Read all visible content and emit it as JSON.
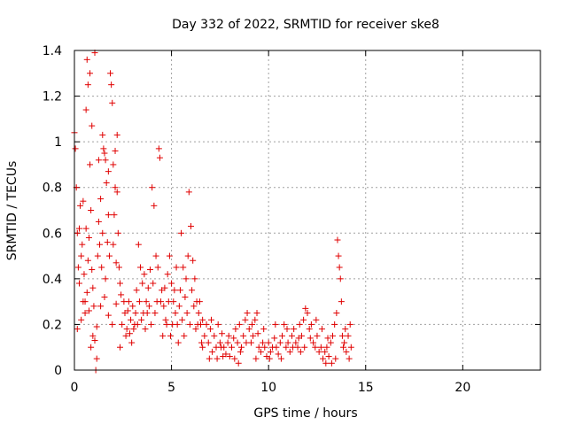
{
  "chart_data": {
    "type": "scatter",
    "title": "Day 332 of 2022, SRMTID for receiver ske8",
    "xlabel": "GPS time / hours",
    "ylabel": "SRMTID / TECUs",
    "xlim": [
      0,
      24
    ],
    "ylim": [
      0,
      1.4
    ],
    "x_ticks": [
      0,
      5,
      10,
      15,
      20
    ],
    "x_tick_labels": [
      "0",
      "5",
      "10",
      "15",
      "20"
    ],
    "y_ticks": [
      0,
      0.2,
      0.4,
      0.6,
      0.8,
      1.0,
      1.2,
      1.4
    ],
    "y_tick_labels": [
      "0",
      "0.2",
      "0.4",
      "0.6",
      "0.8",
      "1",
      "1.2",
      "1.4"
    ],
    "grid": true,
    "marker": "+",
    "color": "#e00000",
    "series": [
      {
        "name": "SRMTID",
        "points": [
          [
            0.0,
            1.04
          ],
          [
            0.05,
            0.97
          ],
          [
            0.1,
            0.8
          ],
          [
            0.15,
            0.6
          ],
          [
            0.2,
            0.45
          ],
          [
            0.25,
            0.38
          ],
          [
            0.3,
            0.72
          ],
          [
            0.35,
            0.5
          ],
          [
            0.4,
            0.55
          ],
          [
            0.45,
            0.3
          ],
          [
            0.5,
            0.42
          ],
          [
            0.55,
            0.25
          ],
          [
            0.6,
            0.62
          ],
          [
            0.65,
            0.34
          ],
          [
            0.7,
            0.48
          ],
          [
            0.75,
            0.58
          ],
          [
            0.8,
            0.9
          ],
          [
            0.85,
            0.7
          ],
          [
            0.9,
            0.44
          ],
          [
            0.95,
            0.36
          ],
          [
            1.0,
            0.28
          ],
          [
            1.05,
            1.39
          ],
          [
            1.1,
            0.0
          ],
          [
            1.15,
            0.05
          ],
          [
            1.2,
            0.5
          ],
          [
            1.25,
            0.65
          ],
          [
            1.3,
            0.55
          ],
          [
            1.35,
            0.75
          ],
          [
            1.4,
            0.45
          ],
          [
            1.45,
            0.6
          ],
          [
            1.5,
            0.97
          ],
          [
            1.55,
            0.95
          ],
          [
            1.6,
            0.4
          ],
          [
            1.65,
            0.82
          ],
          [
            1.7,
            0.56
          ],
          [
            1.75,
            0.68
          ],
          [
            1.8,
            0.5
          ],
          [
            1.85,
            1.3
          ],
          [
            1.9,
            1.25
          ],
          [
            1.95,
            1.17
          ],
          [
            2.0,
            0.55
          ],
          [
            2.05,
            0.68
          ],
          [
            2.1,
            0.8
          ],
          [
            2.15,
            0.47
          ],
          [
            2.2,
            1.03
          ],
          [
            2.25,
            0.6
          ],
          [
            2.3,
            0.45
          ],
          [
            2.35,
            0.38
          ],
          [
            2.4,
            0.33
          ],
          [
            0.15,
            0.18
          ],
          [
            0.35,
            0.22
          ],
          [
            0.55,
            0.3
          ],
          [
            0.75,
            0.26
          ],
          [
            0.95,
            0.15
          ],
          [
            1.15,
            0.19
          ],
          [
            1.35,
            0.28
          ],
          [
            1.55,
            0.32
          ],
          [
            1.75,
            0.24
          ],
          [
            1.95,
            0.2
          ],
          [
            2.15,
            0.29
          ],
          [
            2.35,
            0.1
          ],
          [
            0.85,
            0.1
          ],
          [
            1.05,
            0.13
          ],
          [
            0.25,
            0.62
          ],
          [
            0.45,
            0.74
          ],
          [
            0.65,
            1.36
          ],
          [
            0.8,
            1.3
          ],
          [
            0.7,
            1.25
          ],
          [
            0.6,
            1.14
          ],
          [
            0.9,
            1.07
          ],
          [
            1.45,
            1.03
          ],
          [
            1.6,
            0.92
          ],
          [
            1.75,
            0.87
          ],
          [
            2.0,
            0.9
          ],
          [
            2.1,
            0.96
          ],
          [
            2.2,
            0.78
          ],
          [
            1.25,
            0.92
          ],
          [
            2.6,
            0.25
          ],
          [
            2.7,
            0.18
          ],
          [
            2.8,
            0.3
          ],
          [
            2.9,
            0.22
          ],
          [
            3.0,
            0.28
          ],
          [
            3.1,
            0.2
          ],
          [
            3.2,
            0.35
          ],
          [
            3.3,
            0.55
          ],
          [
            3.4,
            0.45
          ],
          [
            3.5,
            0.38
          ],
          [
            3.6,
            0.42
          ],
          [
            3.7,
            0.3
          ],
          [
            3.8,
            0.36
          ],
          [
            3.9,
            0.44
          ],
          [
            4.0,
            0.8
          ],
          [
            4.1,
            0.72
          ],
          [
            4.2,
            0.5
          ],
          [
            4.3,
            0.45
          ],
          [
            4.35,
            0.97
          ],
          [
            4.4,
            0.93
          ],
          [
            4.5,
            0.35
          ],
          [
            4.6,
            0.28
          ],
          [
            4.7,
            0.22
          ],
          [
            4.8,
            0.42
          ],
          [
            4.9,
            0.5
          ],
          [
            5.0,
            0.38
          ],
          [
            5.1,
            0.3
          ],
          [
            5.2,
            0.25
          ],
          [
            5.3,
            0.2
          ],
          [
            5.4,
            0.28
          ],
          [
            5.5,
            0.6
          ],
          [
            5.6,
            0.45
          ],
          [
            5.7,
            0.32
          ],
          [
            5.8,
            0.25
          ],
          [
            5.9,
            0.78
          ],
          [
            6.0,
            0.63
          ],
          [
            6.1,
            0.48
          ],
          [
            6.2,
            0.4
          ],
          [
            6.3,
            0.3
          ],
          [
            6.4,
            0.25
          ],
          [
            6.5,
            0.2
          ],
          [
            6.6,
            0.22
          ],
          [
            2.65,
            0.15
          ],
          [
            2.95,
            0.12
          ],
          [
            3.25,
            0.2
          ],
          [
            3.55,
            0.25
          ],
          [
            3.85,
            0.28
          ],
          [
            4.15,
            0.25
          ],
          [
            4.45,
            0.3
          ],
          [
            4.75,
            0.2
          ],
          [
            5.05,
            0.2
          ],
          [
            5.35,
            0.12
          ],
          [
            5.65,
            0.15
          ],
          [
            5.95,
            0.2
          ],
          [
            6.25,
            0.18
          ],
          [
            6.55,
            0.12
          ],
          [
            6.7,
            0.15
          ],
          [
            6.8,
            0.2
          ],
          [
            6.9,
            0.12
          ],
          [
            7.0,
            0.18
          ],
          [
            7.1,
            0.08
          ],
          [
            7.2,
            0.15
          ],
          [
            7.3,
            0.1
          ],
          [
            7.4,
            0.2
          ],
          [
            7.5,
            0.12
          ],
          [
            7.6,
            0.16
          ],
          [
            7.7,
            0.1
          ],
          [
            7.8,
            0.07
          ],
          [
            7.9,
            0.12
          ],
          [
            8.0,
            0.06
          ],
          [
            8.1,
            0.1
          ],
          [
            8.2,
            0.14
          ],
          [
            8.3,
            0.18
          ],
          [
            8.4,
            0.12
          ],
          [
            8.5,
            0.2
          ],
          [
            8.6,
            0.1
          ],
          [
            8.7,
            0.15
          ],
          [
            8.8,
            0.22
          ],
          [
            8.9,
            0.25
          ],
          [
            9.0,
            0.18
          ],
          [
            9.1,
            0.12
          ],
          [
            9.2,
            0.15
          ],
          [
            9.3,
            0.22
          ],
          [
            9.4,
            0.25
          ],
          [
            9.5,
            0.1
          ],
          [
            9.6,
            0.08
          ],
          [
            9.7,
            0.12
          ],
          [
            9.8,
            0.1
          ],
          [
            9.9,
            0.06
          ],
          [
            10.0,
            0.12
          ],
          [
            10.1,
            0.08
          ],
          [
            10.2,
            0.1
          ],
          [
            10.3,
            0.14
          ],
          [
            10.4,
            0.1
          ],
          [
            10.5,
            0.07
          ],
          [
            10.6,
            0.12
          ],
          [
            10.7,
            0.15
          ],
          [
            10.8,
            0.2
          ],
          [
            10.9,
            0.1
          ],
          [
            11.0,
            0.12
          ],
          [
            11.1,
            0.08
          ],
          [
            11.2,
            0.15
          ],
          [
            11.3,
            0.18
          ],
          [
            11.4,
            0.12
          ],
          [
            11.5,
            0.1
          ],
          [
            11.6,
            0.2
          ],
          [
            11.7,
            0.15
          ],
          [
            11.8,
            0.22
          ],
          [
            11.9,
            0.27
          ],
          [
            12.0,
            0.25
          ],
          [
            12.1,
            0.18
          ],
          [
            12.2,
            0.2
          ],
          [
            12.3,
            0.12
          ],
          [
            12.4,
            0.1
          ],
          [
            12.5,
            0.15
          ],
          [
            12.6,
            0.08
          ],
          [
            12.7,
            0.1
          ],
          [
            12.8,
            0.05
          ],
          [
            12.9,
            0.08
          ],
          [
            13.0,
            0.1
          ],
          [
            13.1,
            0.06
          ],
          [
            13.2,
            0.12
          ],
          [
            13.3,
            0.15
          ],
          [
            13.4,
            0.2
          ],
          [
            13.5,
            0.25
          ],
          [
            13.55,
            0.57
          ],
          [
            13.6,
            0.5
          ],
          [
            13.65,
            0.45
          ],
          [
            13.7,
            0.4
          ],
          [
            13.75,
            0.3
          ],
          [
            13.8,
            0.15
          ],
          [
            13.85,
            0.1
          ],
          [
            13.9,
            0.12
          ],
          [
            14.0,
            0.08
          ],
          [
            14.1,
            0.15
          ],
          [
            14.2,
            0.2
          ],
          [
            14.25,
            0.1
          ],
          [
            14.15,
            0.05
          ],
          [
            13.95,
            0.18
          ],
          [
            13.45,
            0.05
          ],
          [
            7.05,
            0.22
          ],
          [
            7.35,
            0.05
          ],
          [
            7.65,
            0.06
          ],
          [
            7.95,
            0.15
          ],
          [
            8.25,
            0.05
          ],
          [
            8.55,
            0.08
          ],
          [
            8.85,
            0.12
          ],
          [
            9.15,
            0.2
          ],
          [
            9.45,
            0.16
          ],
          [
            9.75,
            0.18
          ],
          [
            10.05,
            0.05
          ],
          [
            10.35,
            0.2
          ],
          [
            10.65,
            0.05
          ],
          [
            10.95,
            0.18
          ],
          [
            11.25,
            0.1
          ],
          [
            11.55,
            0.14
          ],
          [
            11.85,
            0.1
          ],
          [
            12.15,
            0.14
          ],
          [
            12.45,
            0.22
          ],
          [
            12.75,
            0.18
          ],
          [
            13.05,
            0.14
          ],
          [
            13.25,
            0.03
          ],
          [
            12.95,
            0.03
          ],
          [
            11.65,
            0.08
          ],
          [
            9.35,
            0.05
          ],
          [
            8.45,
            0.03
          ],
          [
            7.55,
            0.1
          ],
          [
            6.95,
            0.05
          ],
          [
            2.45,
            0.2
          ],
          [
            2.55,
            0.3
          ],
          [
            2.75,
            0.26
          ],
          [
            2.85,
            0.16
          ],
          [
            3.05,
            0.18
          ],
          [
            3.15,
            0.25
          ],
          [
            3.35,
            0.3
          ],
          [
            3.45,
            0.22
          ],
          [
            3.65,
            0.18
          ],
          [
            3.75,
            0.25
          ],
          [
            3.95,
            0.2
          ],
          [
            4.05,
            0.38
          ],
          [
            4.25,
            0.3
          ],
          [
            4.55,
            0.15
          ],
          [
            4.65,
            0.36
          ],
          [
            4.85,
            0.3
          ],
          [
            4.95,
            0.15
          ],
          [
            5.15,
            0.35
          ],
          [
            5.25,
            0.45
          ],
          [
            5.45,
            0.35
          ],
          [
            5.55,
            0.22
          ],
          [
            5.75,
            0.4
          ],
          [
            5.85,
            0.5
          ],
          [
            6.05,
            0.35
          ],
          [
            6.15,
            0.28
          ],
          [
            6.35,
            0.2
          ],
          [
            6.45,
            0.3
          ],
          [
            6.6,
            0.1
          ]
        ]
      }
    ]
  }
}
